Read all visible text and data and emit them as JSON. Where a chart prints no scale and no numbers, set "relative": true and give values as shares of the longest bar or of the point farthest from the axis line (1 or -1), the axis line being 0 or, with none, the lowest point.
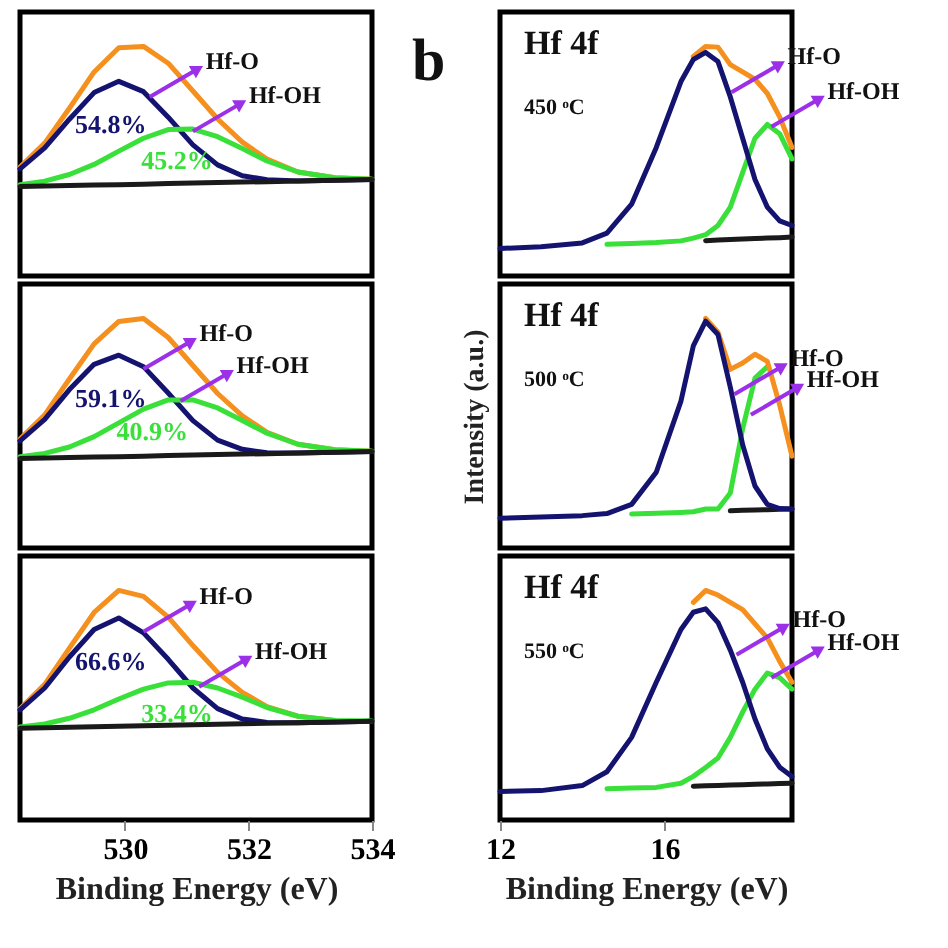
{
  "chart_data": [
    {
      "type": "line",
      "relative": true,
      "xlim": [
        528.3,
        534
      ],
      "xticks": [
        530,
        532,
        534
      ],
      "tick_labels": false,
      "x": [
        528.3,
        528.7,
        529.1,
        529.5,
        529.9,
        530.3,
        530.7,
        531.1,
        531.5,
        531.9,
        532.3,
        532.8,
        533.4,
        534.0
      ],
      "series": [
        {
          "color": "#f5901e",
          "values": [
            0.475,
            0.579,
            0.731,
            0.889,
            0.994,
            1.0,
            0.927,
            0.806,
            0.684,
            0.583,
            0.509,
            0.453,
            0.428,
            0.422
          ]
        },
        {
          "color": "#141470",
          "values": [
            0.467,
            0.558,
            0.683,
            0.799,
            0.848,
            0.803,
            0.692,
            0.571,
            0.484,
            0.437,
            0.419,
            0.414,
            0.417,
            0.42
          ]
        },
        {
          "color": "#3ae03a",
          "values": [
            0.398,
            0.413,
            0.442,
            0.486,
            0.544,
            0.6,
            0.638,
            0.64,
            0.607,
            0.555,
            0.501,
            0.453,
            0.428,
            0.422
          ]
        },
        {
          "color": "#1a1a1a",
          "values": [
            0.39,
            0.392,
            0.394,
            0.396,
            0.398,
            0.4,
            0.403,
            0.405,
            0.407,
            0.409,
            0.411,
            0.414,
            0.417,
            0.42
          ]
        }
      ],
      "annotations": [
        {
          "text": "Hf-O",
          "x": 530.4,
          "y": 0.78
        },
        {
          "text": "Hf-OH",
          "x": 531.1,
          "y": 0.63
        },
        "54.8%",
        "45.2%"
      ]
    },
    {
      "type": "line",
      "relative": true,
      "title": "b",
      "xlim": [
        12,
        19.1
      ],
      "xticks": [
        12,
        16
      ],
      "tick_labels": false,
      "x": [
        12,
        13,
        14,
        14.6,
        15.2,
        15.8,
        16.4,
        16.7,
        17.0,
        17.3,
        17.6,
        17.9,
        18.2,
        18.5,
        18.8,
        19.1
      ],
      "series": [
        {
          "color": "#1a1a1a",
          "x": [
            17.0,
            17.3,
            17.6,
            17.9,
            18.2,
            18.5,
            18.8,
            19.1
          ],
          "values": [
            0.154,
            0.157,
            0.159,
            0.161,
            0.163,
            0.165,
            0.167,
            0.17
          ]
        },
        {
          "color": "#3ae03a",
          "x": [
            14.6,
            15.2,
            15.8,
            16.4,
            16.7,
            17.0,
            17.3,
            17.6,
            17.9,
            18.2,
            18.5,
            18.8,
            19.1
          ],
          "values": [
            0.138,
            0.142,
            0.146,
            0.153,
            0.165,
            0.18,
            0.22,
            0.3,
            0.45,
            0.6,
            0.66,
            0.62,
            0.51
          ]
        },
        {
          "color": "#f5901e",
          "x": [
            16.7,
            17.0,
            17.3,
            17.6,
            17.9,
            18.2,
            18.5,
            18.8,
            19.1
          ],
          "values": [
            0.956,
            1.0,
            0.997,
            0.921,
            0.889,
            0.857,
            0.795,
            0.693,
            0.56
          ]
        },
        {
          "color": "#141470",
          "values": [
            0.12,
            0.127,
            0.144,
            0.187,
            0.313,
            0.56,
            0.847,
            0.943,
            0.974,
            0.934,
            0.78,
            0.6,
            0.42,
            0.3,
            0.24,
            0.22
          ]
        }
      ],
      "annotations": [
        "Hf 4f",
        "450 ᵒC",
        {
          "text": "Hf-O",
          "x": 17.63,
          "y": 0.8
        },
        {
          "text": "Hf-OH",
          "x": 18.6,
          "y": 0.65
        }
      ]
    },
    {
      "type": "line",
      "relative": true,
      "xlim": [
        528.3,
        534
      ],
      "xticks": [
        530,
        532,
        534
      ],
      "tick_labels": false,
      "x": [
        528.3,
        528.7,
        529.1,
        529.5,
        529.9,
        530.3,
        530.7,
        531.1,
        531.5,
        531.9,
        532.3,
        532.8,
        533.4,
        534.0
      ],
      "series": [
        {
          "color": "#f5901e",
          "values": [
            0.475,
            0.58,
            0.736,
            0.889,
            0.987,
            1.0,
            0.917,
            0.795,
            0.673,
            0.576,
            0.504,
            0.452,
            0.428,
            0.422
          ]
        },
        {
          "color": "#141470",
          "values": [
            0.467,
            0.56,
            0.69,
            0.8,
            0.84,
            0.79,
            0.675,
            0.555,
            0.47,
            0.43,
            0.415,
            0.414,
            0.417,
            0.42
          ]
        },
        {
          "color": "#3ae03a",
          "values": [
            0.398,
            0.412,
            0.44,
            0.485,
            0.545,
            0.605,
            0.645,
            0.645,
            0.61,
            0.555,
            0.5,
            0.452,
            0.428,
            0.422
          ]
        },
        {
          "color": "#1a1a1a",
          "values": [
            0.39,
            0.392,
            0.394,
            0.396,
            0.398,
            0.4,
            0.403,
            0.405,
            0.407,
            0.409,
            0.411,
            0.414,
            0.417,
            0.42
          ]
        }
      ],
      "annotations": [
        {
          "text": "Hf-O",
          "x": 530.3,
          "y": 0.78
        },
        {
          "text": "Hf-OH",
          "x": 530.9,
          "y": 0.64
        },
        "59.1%",
        "40.9%"
      ]
    },
    {
      "type": "line",
      "relative": true,
      "ylabel": "Intensity (a.u.)",
      "xlim": [
        12,
        19.1
      ],
      "xticks": [
        12,
        16
      ],
      "tick_labels": false,
      "x": [
        12,
        13,
        14,
        14.6,
        15.2,
        15.8,
        16.4,
        16.7,
        17.0,
        17.3,
        17.6,
        17.9,
        18.2,
        18.5,
        18.8,
        19.1
      ],
      "series": [
        {
          "color": "#1a1a1a",
          "x": [
            17.6,
            17.9,
            18.2,
            18.5,
            18.8,
            19.1
          ],
          "values": [
            0.162,
            0.164,
            0.166,
            0.167,
            0.169,
            0.17
          ]
        },
        {
          "color": "#3ae03a",
          "x": [
            15.2,
            15.8,
            16.4,
            16.7,
            17.0,
            17.3,
            17.6,
            17.9,
            18.2,
            18.5
          ],
          "values": [
            0.148,
            0.151,
            0.155,
            0.158,
            0.17,
            0.17,
            0.24,
            0.52,
            0.74,
            0.79
          ]
        },
        {
          "color": "#f5901e",
          "x": [
            17.0,
            17.3,
            17.6,
            17.9,
            18.2,
            18.5,
            18.8,
            19.1
          ],
          "values": [
            1.0,
            0.94,
            0.778,
            0.806,
            0.844,
            0.813,
            0.623,
            0.4
          ]
        },
        {
          "color": "#141470",
          "values": [
            0.13,
            0.135,
            0.141,
            0.15,
            0.19,
            0.33,
            0.64,
            0.88,
            0.988,
            0.93,
            0.7,
            0.45,
            0.27,
            0.19,
            0.172,
            0.17
          ]
        }
      ],
      "annotations": [
        "Hf 4f",
        "500 ᵒC",
        {
          "text": "Hf-O",
          "x": 17.7,
          "y": 0.67
        },
        {
          "text": "Hf-OH",
          "x": 18.1,
          "y": 0.58
        }
      ]
    },
    {
      "type": "line",
      "relative": true,
      "xlabel": "Binding Energy (eV)",
      "xlim": [
        528.3,
        534
      ],
      "xticks": [
        530,
        532,
        534
      ],
      "tick_labels": "x",
      "x": [
        528.3,
        528.7,
        529.1,
        529.5,
        529.9,
        530.3,
        530.7,
        531.1,
        531.5,
        531.9,
        532.3,
        532.8,
        533.4,
        534.0
      ],
      "series": [
        {
          "color": "#f5901e",
          "values": [
            0.485,
            0.591,
            0.749,
            0.904,
            1.0,
            0.974,
            0.884,
            0.76,
            0.643,
            0.556,
            0.494,
            0.452,
            0.433,
            null
          ]
        },
        {
          "color": "#141470",
          "values": [
            0.48,
            0.575,
            0.71,
            0.83,
            0.88,
            0.815,
            0.7,
            0.575,
            0.485,
            0.44,
            0.425,
            0.424,
            0.427,
            0.43
          ]
        },
        {
          "color": "#3ae03a",
          "values": [
            0.405,
            0.418,
            0.443,
            0.48,
            0.527,
            0.57,
            0.597,
            0.6,
            0.575,
            0.535,
            0.49,
            0.452,
            0.433,
            0.431
          ]
        },
        {
          "color": "#1a1a1a",
          "values": [
            0.4,
            0.402,
            0.404,
            0.406,
            0.408,
            0.411,
            0.413,
            0.415,
            0.417,
            0.419,
            0.421,
            0.424,
            0.427,
            0.43
          ]
        }
      ],
      "annotations": [
        {
          "text": "Hf-O",
          "x": 530.3,
          "y": 0.82
        },
        {
          "text": "Hf-OH",
          "x": 531.2,
          "y": 0.58
        },
        "66.6%",
        "33.4%"
      ]
    },
    {
      "type": "line",
      "relative": true,
      "xlabel": "Binding Energy (eV)",
      "xlim": [
        12,
        19.1
      ],
      "xticks": [
        12,
        16
      ],
      "tick_labels": "x",
      "x": [
        12,
        13,
        14,
        14.6,
        15.2,
        15.8,
        16.4,
        16.7,
        17.0,
        17.3,
        17.6,
        17.9,
        18.2,
        18.5,
        18.8,
        19.1
      ],
      "series": [
        {
          "color": "#1a1a1a",
          "x": [
            16.7,
            17.0,
            17.3,
            17.6,
            17.9,
            18.2,
            18.5,
            18.8,
            19.1
          ],
          "values": [
            0.147,
            0.149,
            0.15,
            0.152,
            0.154,
            0.156,
            0.157,
            0.159,
            0.16
          ]
        },
        {
          "color": "#3ae03a",
          "x": [
            14.6,
            15.2,
            15.8,
            16.4,
            16.7,
            17.0,
            17.3,
            17.6,
            17.9,
            18.2,
            18.5,
            18.8,
            19.1
          ],
          "values": [
            0.136,
            0.139,
            0.142,
            0.16,
            0.19,
            0.229,
            0.27,
            0.36,
            0.47,
            0.57,
            0.64,
            0.62,
            0.57
          ]
        },
        {
          "color": "#f5901e",
          "x": [
            16.7,
            17.0,
            17.3,
            17.6,
            17.9,
            18.2,
            18.5,
            18.8,
            19.1
          ],
          "values": [
            0.948,
            1.0,
            0.98,
            0.948,
            0.916,
            0.854,
            0.793,
            0.691,
            0.6
          ]
        },
        {
          "color": "#141470",
          "values": [
            0.124,
            0.128,
            0.15,
            0.21,
            0.36,
            0.6,
            0.83,
            0.905,
            0.92,
            0.86,
            0.74,
            0.6,
            0.44,
            0.31,
            0.23,
            0.19
          ]
        }
      ],
      "annotations": [
        "Hf 4f",
        "550 ᵒC",
        {
          "text": "Hf-O",
          "x": 17.75,
          "y": 0.72
        },
        {
          "text": "Hf-OH",
          "x": 18.6,
          "y": 0.62
        }
      ]
    }
  ]
}
